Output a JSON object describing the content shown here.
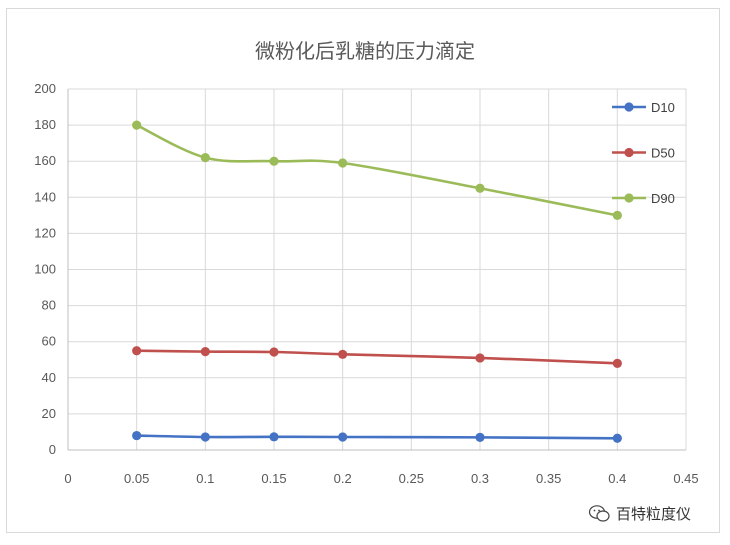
{
  "chart_data": {
    "type": "line",
    "title": "微粉化后乳糖的压力滴定",
    "x": [
      0.05,
      0.1,
      0.15,
      0.2,
      0.3,
      0.4
    ],
    "xlim": [
      0,
      0.45
    ],
    "ylim": [
      0,
      200
    ],
    "xticks": [
      "0",
      "0.05",
      "0.1",
      "0.15",
      "0.2",
      "0.25",
      "0.3",
      "0.35",
      "0.4",
      "0.45"
    ],
    "yticks": [
      "0",
      "20",
      "40",
      "60",
      "80",
      "100",
      "120",
      "140",
      "160",
      "180",
      "200"
    ],
    "grid": true,
    "legend_position": "right",
    "series": [
      {
        "name": "D10",
        "color": "#4472c4",
        "values": [
          8,
          7.2,
          7.3,
          7.2,
          7.0,
          6.5
        ]
      },
      {
        "name": "D50",
        "color": "#c0504d",
        "values": [
          55,
          54.5,
          54.3,
          53,
          51,
          48
        ]
      },
      {
        "name": "D90",
        "color": "#9bbb59",
        "values": [
          180,
          162,
          160,
          159,
          145,
          130
        ]
      }
    ]
  },
  "watermark": {
    "text": "百特粒度仪",
    "icon": "wechat-icon"
  }
}
